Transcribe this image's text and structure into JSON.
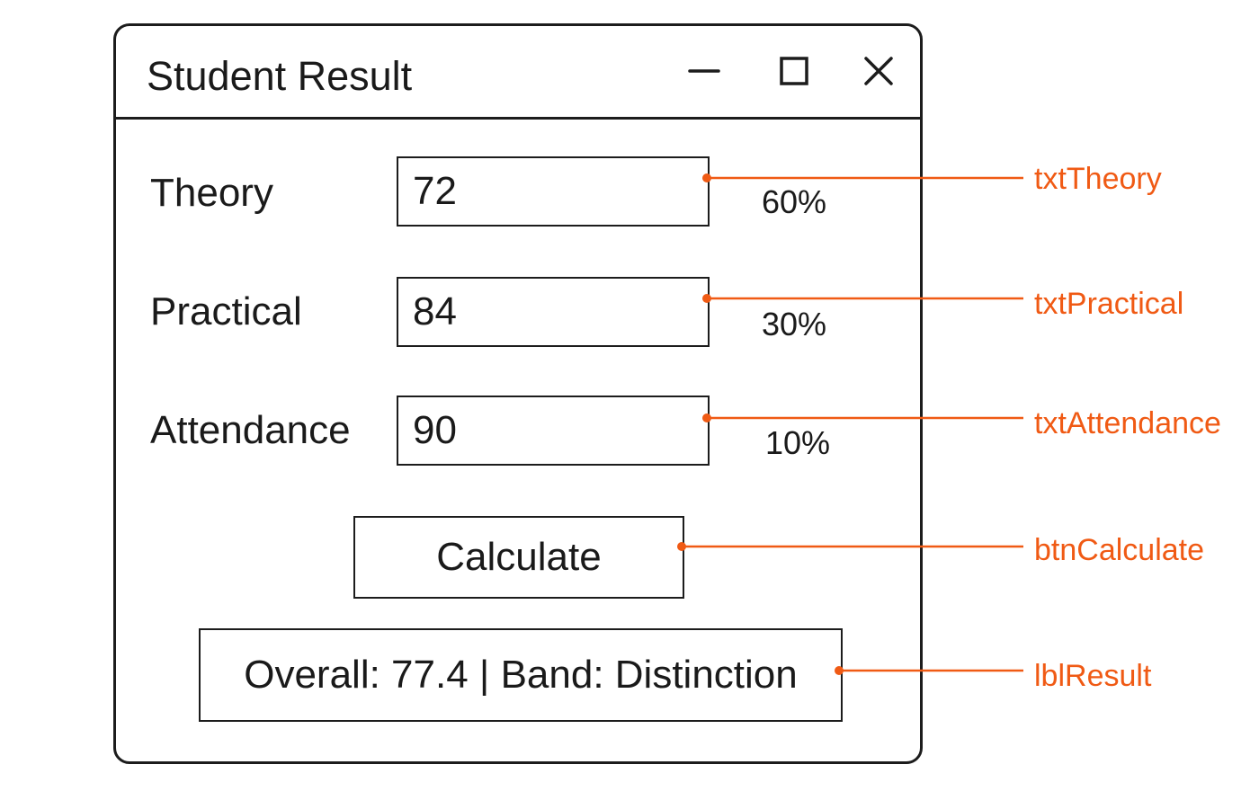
{
  "window": {
    "title": "Student Result",
    "controls": [
      "minimize-icon",
      "maximize-icon",
      "close-icon"
    ]
  },
  "fields": {
    "theory": {
      "label": "Theory",
      "value": "72",
      "weight": "60%"
    },
    "practical": {
      "label": "Practical",
      "value": "84",
      "weight": "30%"
    },
    "attendance": {
      "label": "Attendance",
      "value": "90",
      "weight": "10%"
    }
  },
  "actions": {
    "calculate_label": "Calculate"
  },
  "result": {
    "text": "Overall: 77.4 | Band: Distinction"
  },
  "annotations": {
    "theory": "txtTheory",
    "practical": "txtPractical",
    "attendance": "txtAttendance",
    "calculate": "btnCalculate",
    "result": "lblResult"
  },
  "colors": {
    "annotation": "#f05a14",
    "border": "#1c1c1c",
    "text": "#1a1a1a",
    "background": "#ffffff"
  }
}
